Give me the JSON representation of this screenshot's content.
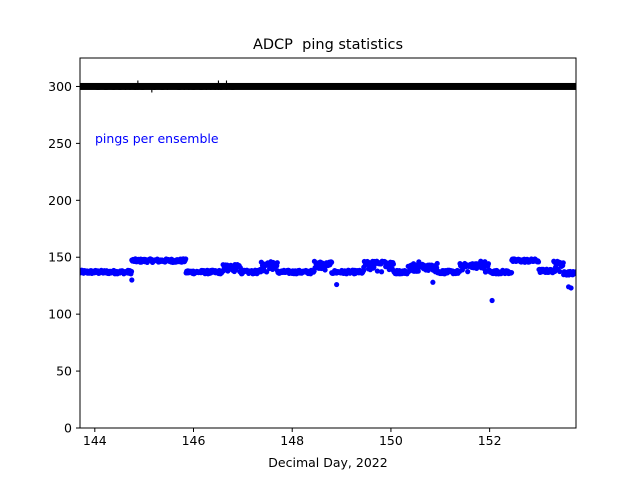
{
  "chart_data": {
    "type": "scatter",
    "title": "ADCP  ping statistics",
    "xlabel": "Decimal Day, 2022",
    "ylabel": "",
    "xlim": [
      143.7,
      153.75
    ],
    "ylim": [
      0,
      325
    ],
    "x_ticks": [
      144,
      146,
      148,
      150,
      152
    ],
    "y_ticks": [
      0,
      50,
      100,
      150,
      200,
      250,
      300
    ],
    "x_tick_labels": [
      "144",
      "146",
      "148",
      "150",
      "152"
    ],
    "y_tick_labels": [
      "0",
      "50",
      "100",
      "150",
      "200",
      "250",
      "300"
    ],
    "grid": false,
    "annotations": [
      {
        "text": "seconds per ensemble",
        "color": "#000000"
      },
      {
        "text": "pings per ensemble",
        "color": "#0000ff"
      }
    ],
    "series": [
      {
        "color": "#000000",
        "constant_value": 300,
        "x_range": [
          143.7,
          153.75
        ]
      },
      {
        "color": "#0000ff",
        "segments": [
          {
            "x0": 143.7,
            "x1": 144.75,
            "base": 137
          },
          {
            "x0": 144.75,
            "x1": 145.85,
            "base": 147
          },
          {
            "x0": 145.85,
            "x1": 146.6,
            "base": 137
          },
          {
            "x0": 146.6,
            "x1": 146.95,
            "base": 142
          },
          {
            "x0": 146.95,
            "x1": 147.35,
            "base": 137
          },
          {
            "x0": 147.35,
            "x1": 147.7,
            "base": 144
          },
          {
            "x0": 147.7,
            "x1": 148.45,
            "base": 137
          },
          {
            "x0": 148.45,
            "x1": 148.8,
            "base": 144
          },
          {
            "x0": 148.8,
            "x1": 149.45,
            "base": 137
          },
          {
            "x0": 149.45,
            "x1": 150.05,
            "base": 145
          },
          {
            "x0": 150.05,
            "x1": 150.35,
            "base": 137
          },
          {
            "x0": 150.35,
            "x1": 150.95,
            "base": 142
          },
          {
            "x0": 150.95,
            "x1": 151.4,
            "base": 137
          },
          {
            "x0": 151.4,
            "x1": 152.0,
            "base": 143
          },
          {
            "x0": 152.0,
            "x1": 152.45,
            "base": 137
          },
          {
            "x0": 152.45,
            "x1": 153.0,
            "base": 147
          },
          {
            "x0": 153.0,
            "x1": 153.3,
            "base": 138
          },
          {
            "x0": 153.3,
            "x1": 153.5,
            "base": 145
          },
          {
            "x0": 153.5,
            "x1": 153.75,
            "base": 136
          }
        ],
        "outliers": [
          [
            144.75,
            130
          ],
          [
            148.9,
            126
          ],
          [
            150.85,
            128
          ],
          [
            152.05,
            112
          ],
          [
            153.6,
            124
          ],
          [
            153.65,
            123
          ]
        ]
      }
    ]
  }
}
